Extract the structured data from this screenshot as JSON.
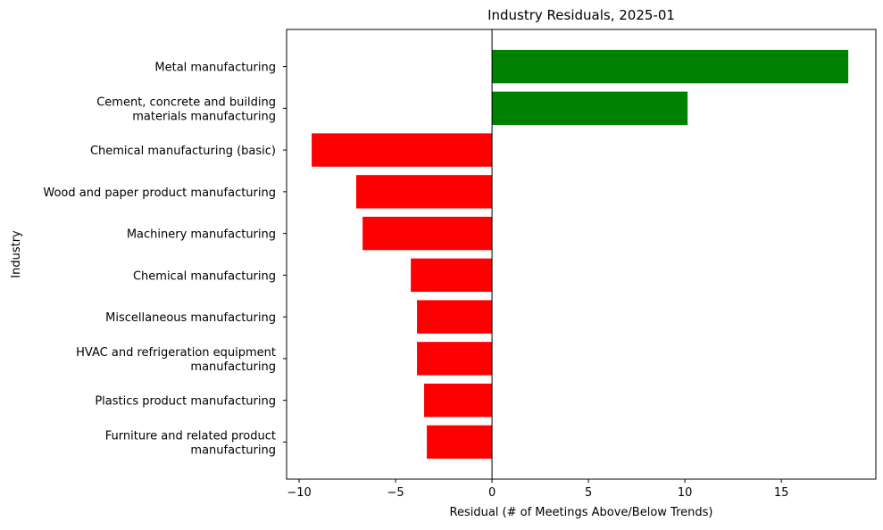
{
  "chart_data": {
    "type": "barh",
    "title": "Industry Residuals, 2025-01",
    "x_label": "Residual (# of Meetings Above/Below Trends)",
    "y_label": "Industry",
    "categories": [
      "Metal manufacturing",
      "Cement, concrete and building\nmaterials manufacturing",
      "Chemical manufacturing (basic)",
      "Wood and paper product manufacturing",
      "Machinery manufacturing",
      "Chemical manufacturing",
      "Miscellaneous manufacturing",
      "HVAC and refrigeration equipment\nmanufacturing",
      "Plastics product manufacturing",
      "Furniture and related product\nmanufacturing"
    ],
    "values": [
      18.47,
      10.14,
      -9.35,
      -7.04,
      -6.71,
      -4.21,
      -3.89,
      -3.89,
      -3.52,
      -3.38
    ],
    "colors": [
      "#008000",
      "#008000",
      "#ff0000",
      "#ff0000",
      "#ff0000",
      "#ff0000",
      "#ff0000",
      "#ff0000",
      "#ff0000",
      "#ff0000"
    ],
    "xlim": [
      -10.65,
      19.9
    ],
    "xticks": [
      {
        "value": -10,
        "label": "−10"
      },
      {
        "value": -5,
        "label": "−5"
      },
      0,
      5,
      10,
      15
    ]
  }
}
